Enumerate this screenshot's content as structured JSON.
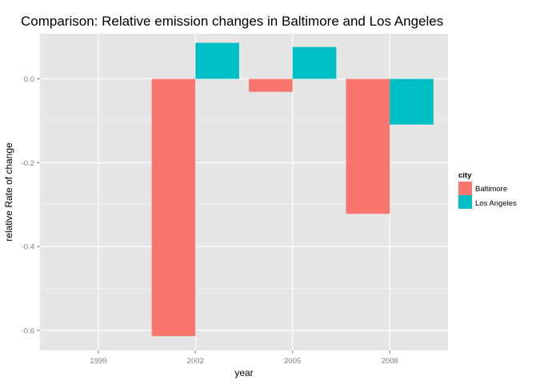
{
  "chart_data": {
    "type": "bar",
    "title": "Comparison: Relative emission changes in Baltimore and Los Angeles",
    "xlabel": "year",
    "ylabel": "relative Rate of change",
    "categories": [
      "1999",
      "2002",
      "2005",
      "2008"
    ],
    "series": [
      {
        "name": "Baltimore",
        "color": "#F8766D",
        "values": [
          0,
          -0.614,
          -0.031,
          -0.322
        ]
      },
      {
        "name": "Los Angeles",
        "color": "#00BFC4",
        "values": [
          0,
          0.086,
          0.076,
          -0.109
        ]
      }
    ],
    "ylim": [
      -0.648,
      0.108
    ],
    "yticks": [
      0.0,
      -0.2,
      -0.4,
      -0.6
    ],
    "ytick_labels": [
      "0.0",
      "-0.2",
      "-0.4",
      "-0.6"
    ],
    "grid": true,
    "legend_title": "city",
    "legend_position": "right"
  }
}
